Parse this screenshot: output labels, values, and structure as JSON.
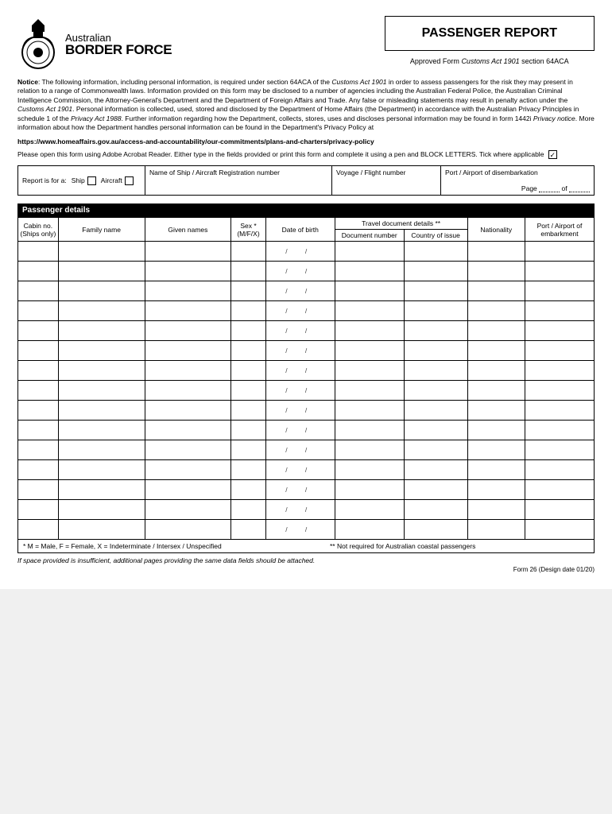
{
  "logo": {
    "line1": "Australian",
    "line2": "BORDER FORCE"
  },
  "title": "PASSENGER REPORT",
  "approved": {
    "pre": "Approved Form ",
    "ital": "Customs Act 1901",
    "post": " section 64ACA"
  },
  "notice": {
    "label": "Notice",
    "t1": ": The following information, including personal information, is required under section 64ACA of the ",
    "i1": "Customs Act 1901",
    "t2": " in order to assess passengers for the risk they may present in relation to a range of Commonwealth laws. Information provided on this form may be disclosed to a number of agencies including the Australian Federal Police, the Australian Criminal Intelligence Commission, the Attorney-General's Department and the Department of Foreign Affairs and Trade. Any false or misleading statements may result in penalty action under the ",
    "i2": "Customs Act 1901",
    "t3": ". Personal information is collected, used, stored and disclosed by the Department of Home Affairs (the Department) in accordance with the Australian Privacy Principles in schedule 1 of the ",
    "i3": "Privacy Act 1988",
    "t4": ". Further information regarding how the Department, collects, stores, uses and discloses personal information may be found in form 1442i ",
    "i4": "Privacy notice",
    "t5": ". More information about how the Department handles personal information can be found in the Department's Privacy Policy at"
  },
  "url": "https://www.homeaffairs.gov.au/access-and-accountability/our-commitments/plans-and-charters/privacy-policy",
  "instruct": "Please open this form using Adobe Acrobat Reader. Either type in the fields provided or print this form and complete it using a pen and BLOCK LETTERS. Tick where applicable",
  "tick": "✓",
  "info": {
    "report_label": "Report is for a:",
    "ship": "Ship",
    "aircraft": "Aircraft",
    "name_label": "Name of Ship / Aircraft Registration number",
    "voyage_label": "Voyage / Flight number",
    "port_label": "Port / Airport of disembarkation",
    "page_label": "Page",
    "of_label": "of"
  },
  "section_header": "Passenger details",
  "cols": {
    "cabin": "Cabin no.\n(Ships only)",
    "family": "Family name",
    "given": "Given names",
    "sex": "Sex *\n(M/F/X)",
    "dob": "Date of birth",
    "travel": "Travel document details **",
    "docnum": "Document number",
    "country": "Country of issue",
    "nat": "Nationality",
    "embark": "Port / Airport of\nembarkment"
  },
  "row_count": 15,
  "dob_placeholder": "/ /",
  "footnote1": "* M = Male,  F = Female,  X = Indeterminate / Intersex / Unspecified",
  "footnote2": "** Not required for Australian coastal passengers",
  "attach_note": "If space provided is insufficient, additional pages providing the same data fields should be attached.",
  "form_foot": "Form 26 (Design date 01/20)",
  "colwidths": {
    "cabin": "7%",
    "family": "15%",
    "given": "15%",
    "sex": "6%",
    "dob": "12%",
    "docnum": "12%",
    "country": "11%",
    "nat": "10%",
    "embark": "12%"
  }
}
